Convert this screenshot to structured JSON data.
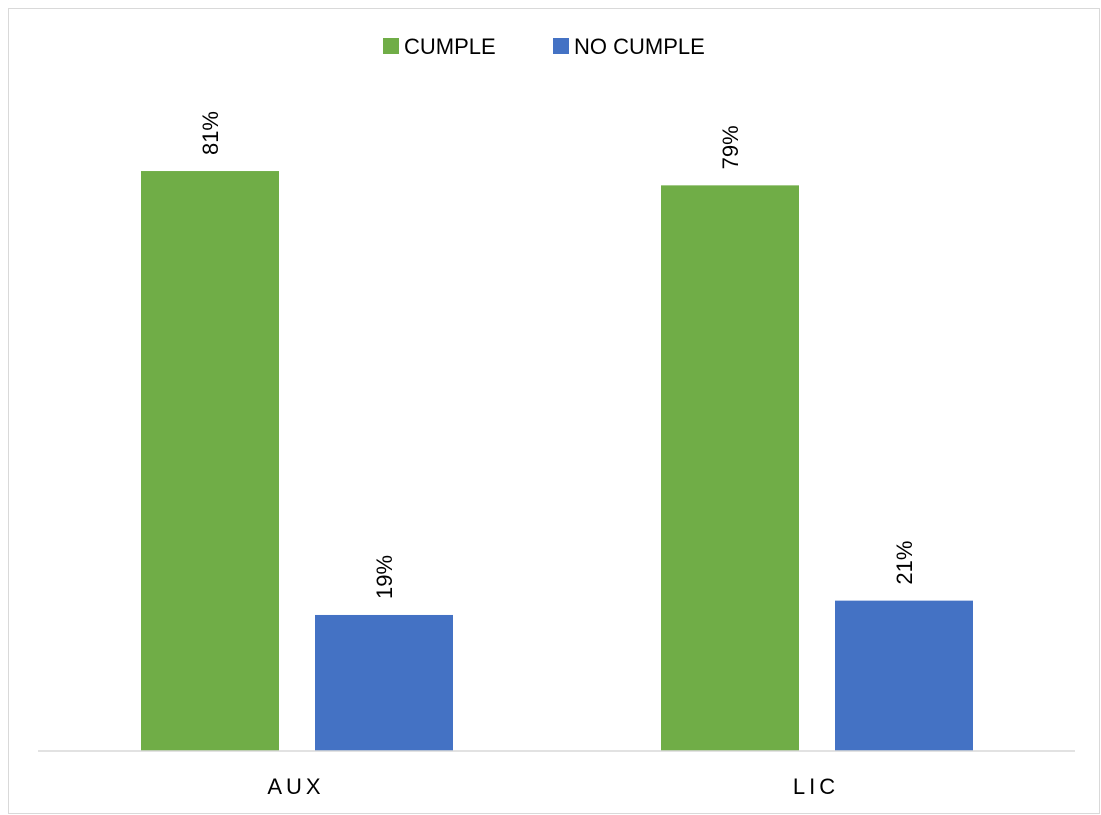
{
  "chart_data": {
    "type": "bar",
    "categories": [
      "AUX",
      "LIC"
    ],
    "series": [
      {
        "name": "CUMPLE",
        "color": "#70ad47",
        "values": [
          81,
          79
        ],
        "labels": [
          "81%",
          "79%"
        ]
      },
      {
        "name": "NO CUMPLE",
        "color": "#4472c4",
        "values": [
          19,
          21
        ],
        "labels": [
          "19%",
          "21%"
        ]
      }
    ],
    "title": "",
    "xlabel": "",
    "ylabel": "",
    "ylim": [
      0,
      100
    ],
    "grid": false,
    "legend": "top-center",
    "value_format": "percent"
  }
}
